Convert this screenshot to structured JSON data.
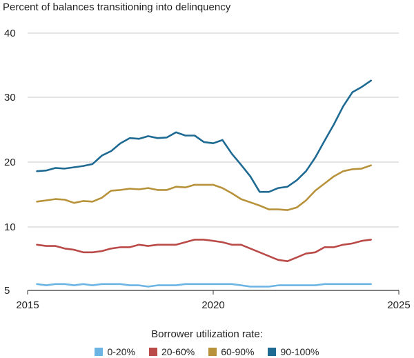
{
  "chart_data": {
    "type": "line",
    "title": "Percent of balances transitioning into delinquency",
    "xlabel": "",
    "ylabel": "",
    "xlim": [
      2015,
      2025
    ],
    "ylim": [
      5,
      40
    ],
    "x_ticks": [
      "2015",
      "2020",
      "2025"
    ],
    "y_ticks": [
      "5",
      "10",
      "20",
      "30",
      "40"
    ],
    "grid": true,
    "legend_title": "Borrower utilization rate:",
    "legend_position": "bottom",
    "x": [
      2015.25,
      2015.5,
      2015.75,
      2016,
      2016.25,
      2016.5,
      2016.75,
      2017,
      2017.25,
      2017.5,
      2017.75,
      2018,
      2018.25,
      2018.5,
      2018.75,
      2019,
      2019.25,
      2019.5,
      2019.75,
      2020,
      2020.25,
      2020.5,
      2020.75,
      2021,
      2021.25,
      2021.5,
      2021.75,
      2022,
      2022.25,
      2022.5,
      2022.75,
      2023,
      2023.25,
      2023.5,
      2023.75,
      2024,
      2024.25
    ],
    "series": [
      {
        "name": "0-20%",
        "color": "#6cb4e4",
        "values": [
          5.5,
          5.4,
          5.5,
          5.5,
          5.4,
          5.5,
          5.4,
          5.5,
          5.5,
          5.5,
          5.4,
          5.4,
          5.3,
          5.4,
          5.4,
          5.4,
          5.5,
          5.5,
          5.5,
          5.5,
          5.5,
          5.5,
          5.4,
          5.3,
          5.3,
          5.3,
          5.4,
          5.4,
          5.4,
          5.4,
          5.4,
          5.5,
          5.5,
          5.5,
          5.5,
          5.5,
          5.5
        ]
      },
      {
        "name": "20-60%",
        "color": "#b94a48",
        "values": [
          8.6,
          8.5,
          8.5,
          8.3,
          8.2,
          8.0,
          8.0,
          8.1,
          8.3,
          8.4,
          8.4,
          8.6,
          8.5,
          8.6,
          8.6,
          8.6,
          8.8,
          9.0,
          9.0,
          8.9,
          8.8,
          8.6,
          8.6,
          8.3,
          8.0,
          7.7,
          7.4,
          7.3,
          7.6,
          7.9,
          8.0,
          8.4,
          8.4,
          8.6,
          8.7,
          8.9,
          9.0
        ]
      },
      {
        "name": "60-90%",
        "color": "#b8923a",
        "values": [
          13.9,
          14.1,
          14.3,
          14.2,
          13.7,
          14.0,
          13.9,
          14.5,
          15.6,
          15.7,
          15.9,
          15.8,
          16.0,
          15.7,
          15.7,
          16.2,
          16.1,
          16.5,
          16.5,
          16.5,
          16.0,
          15.2,
          14.3,
          13.8,
          13.3,
          12.7,
          12.7,
          12.6,
          13.0,
          14.1,
          15.6,
          16.7,
          17.8,
          18.6,
          18.9,
          19.0,
          19.5
        ]
      },
      {
        "name": "90-100%",
        "color": "#1e6a93",
        "values": [
          18.6,
          18.7,
          19.1,
          19.0,
          19.2,
          19.4,
          19.7,
          21.0,
          21.7,
          22.9,
          23.7,
          23.6,
          24.0,
          23.7,
          23.8,
          24.6,
          24.1,
          24.1,
          23.1,
          22.9,
          23.4,
          21.3,
          19.6,
          17.8,
          15.4,
          15.4,
          16.0,
          16.2,
          17.2,
          18.6,
          20.7,
          23.3,
          25.8,
          28.6,
          30.8,
          31.6,
          32.6
        ]
      }
    ]
  }
}
